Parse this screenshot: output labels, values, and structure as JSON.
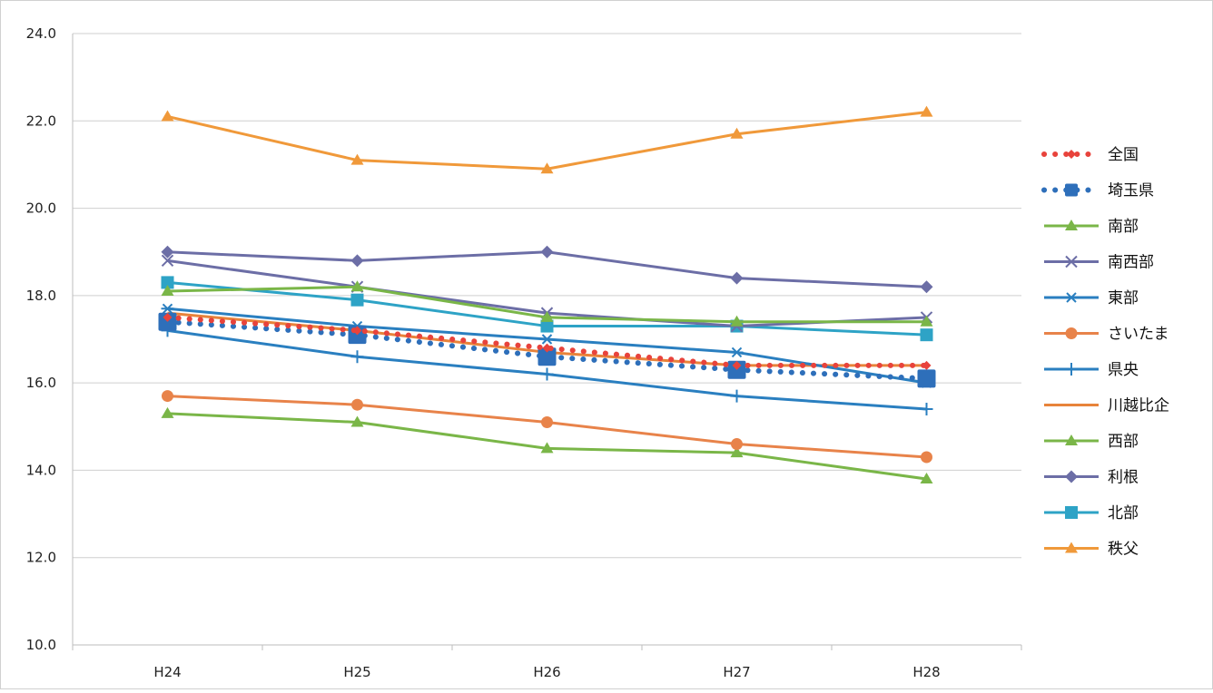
{
  "chart_data": {
    "type": "line",
    "title": "",
    "xlabel": "",
    "ylabel": "",
    "categories": [
      "H24",
      "H25",
      "H26",
      "H27",
      "H28"
    ],
    "ylim": [
      10.0,
      24.0
    ],
    "yticks": [
      "10.0",
      "12.0",
      "14.0",
      "16.0",
      "18.0",
      "20.0",
      "22.0",
      "24.0"
    ],
    "grid": "horizontal",
    "legend_position": "right",
    "series": [
      {
        "name": "全国",
        "values": [
          17.5,
          17.2,
          16.8,
          16.4,
          16.4
        ],
        "color": "#e8433c",
        "line": "dotted",
        "marker": "diamond-small"
      },
      {
        "name": "埼玉県",
        "values": [
          17.4,
          17.1,
          16.6,
          16.3,
          16.1
        ],
        "color": "#2e6fba",
        "line": "dotted",
        "marker": "square-big"
      },
      {
        "name": "南部",
        "values": [
          18.1,
          18.2,
          17.5,
          17.4,
          17.4
        ],
        "color": "#7ab648",
        "line": "solid",
        "marker": "triangle"
      },
      {
        "name": "南西部",
        "values": [
          18.8,
          18.2,
          17.6,
          17.3,
          17.5
        ],
        "color": "#6c6ea6",
        "line": "solid",
        "marker": "x"
      },
      {
        "name": "東部",
        "values": [
          17.7,
          17.3,
          17.0,
          16.7,
          16.0
        ],
        "color": "#2a7fc0",
        "line": "solid",
        "marker": "star"
      },
      {
        "name": "さいたま",
        "values": [
          15.7,
          15.5,
          15.1,
          14.6,
          14.3
        ],
        "color": "#e8834a",
        "line": "solid",
        "marker": "circle"
      },
      {
        "name": "県央",
        "values": [
          17.2,
          16.6,
          16.2,
          15.7,
          15.4
        ],
        "color": "#2a7fc0",
        "line": "solid",
        "marker": "plus"
      },
      {
        "name": "川越比企",
        "values": [
          17.6,
          17.2,
          16.7,
          16.4,
          16.4
        ],
        "color": "#e8833a",
        "line": "solid",
        "marker": "none"
      },
      {
        "name": "西部",
        "values": [
          15.3,
          15.1,
          14.5,
          14.4,
          13.8
        ],
        "color": "#7ab648",
        "line": "solid",
        "marker": "triangle"
      },
      {
        "name": "利根",
        "values": [
          19.0,
          18.8,
          19.0,
          18.4,
          18.2
        ],
        "color": "#6c6ea6",
        "line": "solid",
        "marker": "diamond"
      },
      {
        "name": "北部",
        "values": [
          18.3,
          17.9,
          17.3,
          17.3,
          17.1
        ],
        "color": "#2ea3c6",
        "line": "solid",
        "marker": "square"
      },
      {
        "name": "秩父",
        "values": [
          22.1,
          21.1,
          20.9,
          21.7,
          22.2
        ],
        "color": "#f0993a",
        "line": "solid",
        "marker": "triangle"
      }
    ]
  }
}
